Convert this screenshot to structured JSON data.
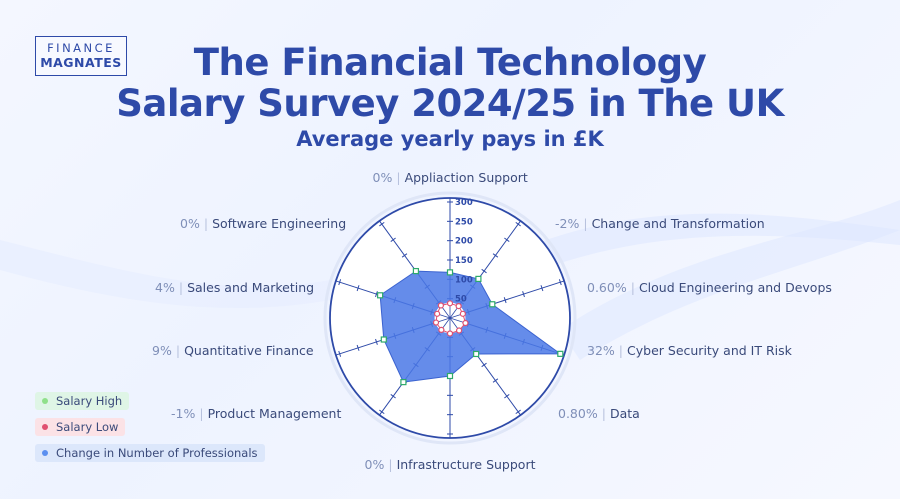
{
  "logo": {
    "line1": "FINANCE",
    "line2": "MAGNATES"
  },
  "header": {
    "title_line1": "The Financial Technology",
    "title_line2": "Salary Survey 2024/25 in The UK",
    "subtitle": "Average yearly pays in  £K"
  },
  "colors": {
    "title": "#2e4aa8",
    "area_fill": "#4a78e6",
    "high_marker": "#2eaa6a",
    "low_marker": "#e05070",
    "legend_high_bg": "#dff5e6",
    "legend_low_bg": "#fbe2e6",
    "legend_change_bg": "#dce7fb"
  },
  "chart_data": {
    "type": "radar",
    "categories": [
      "Appliaction Support",
      "Change and Transformation",
      "Cloud Engineering and Devops",
      "Cyber Security and IT Risk",
      "Data",
      "Infrastructure Support",
      "Product Management",
      "Quantitative Finance",
      "Sales and Marketing",
      "Software Engineering"
    ],
    "change_labels": [
      "0%",
      "-2%",
      "0.60%",
      "32%",
      "0.80%",
      "0%",
      "-1%",
      "9%",
      "4%",
      "0%"
    ],
    "series": [
      {
        "name": "Salary High",
        "values": [
          118,
          125,
          115,
          300,
          115,
          150,
          205,
          180,
          190,
          150
        ]
      },
      {
        "name": "Salary Low",
        "values": [
          38,
          38,
          35,
          42,
          40,
          40,
          38,
          38,
          35,
          40
        ]
      },
      {
        "name": "Change in Number of Professionals",
        "values": [
          0,
          -2,
          0.6,
          32,
          0.8,
          0,
          -1,
          9,
          4,
          0
        ]
      }
    ],
    "rlim": [
      0,
      300
    ],
    "ticks": [
      "50",
      "100",
      "150",
      "200",
      "250",
      "300"
    ],
    "legend_position": "bottom-left"
  },
  "legend": [
    {
      "label": "Salary High"
    },
    {
      "label": "Salary Low"
    },
    {
      "label": "Change in Number of Professionals"
    }
  ]
}
